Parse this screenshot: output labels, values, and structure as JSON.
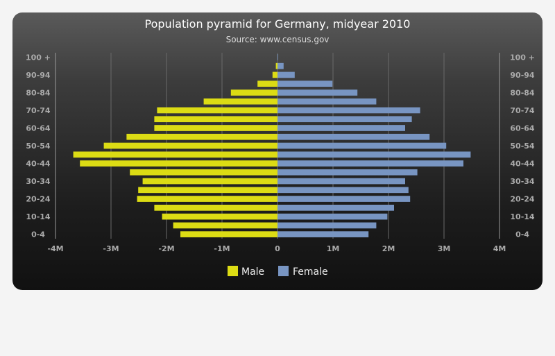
{
  "chart_data": {
    "type": "bar",
    "orientation": "horizontal",
    "title": "Population pyramid for Germany, midyear 2010",
    "subtitle": "Source: www.census.gov",
    "categories": [
      "0-4",
      "5-9",
      "10-14",
      "15-19",
      "20-24",
      "25-29",
      "30-34",
      "35-39",
      "40-44",
      "45-49",
      "50-54",
      "55-59",
      "60-64",
      "65-69",
      "70-74",
      "75-79",
      "80-84",
      "85-89",
      "90-94",
      "95-99",
      "100 +"
    ],
    "category_labels_shown": [
      "100 +",
      "90-94",
      "80-84",
      "70-74",
      "60-64",
      "50-54",
      "40-44",
      "30-34",
      "20-24",
      "10-14",
      "0-4"
    ],
    "series": [
      {
        "name": "Male",
        "color": "#dcdc14",
        "values": [
          -1.75,
          -1.88,
          -2.08,
          -2.22,
          -2.53,
          -2.51,
          -2.43,
          -2.66,
          -3.56,
          -3.68,
          -3.13,
          -2.72,
          -2.22,
          -2.22,
          -2.17,
          -1.33,
          -0.84,
          -0.36,
          -0.09,
          -0.03,
          0
        ]
      },
      {
        "name": "Female",
        "color": "#7895c2",
        "values": [
          1.64,
          1.78,
          1.98,
          2.1,
          2.39,
          2.36,
          2.3,
          2.52,
          3.35,
          3.48,
          3.04,
          2.74,
          2.3,
          2.42,
          2.57,
          1.78,
          1.44,
          0.99,
          0.31,
          0.11,
          0.01
        ]
      }
    ],
    "x_ticks": [
      "-4M",
      "-3M",
      "-2M",
      "-1M",
      "0",
      "1M",
      "2M",
      "3M",
      "4M"
    ],
    "xlim": [
      -4,
      4
    ],
    "x_unit": "millions",
    "grid": true,
    "legend": "bottom-center"
  }
}
